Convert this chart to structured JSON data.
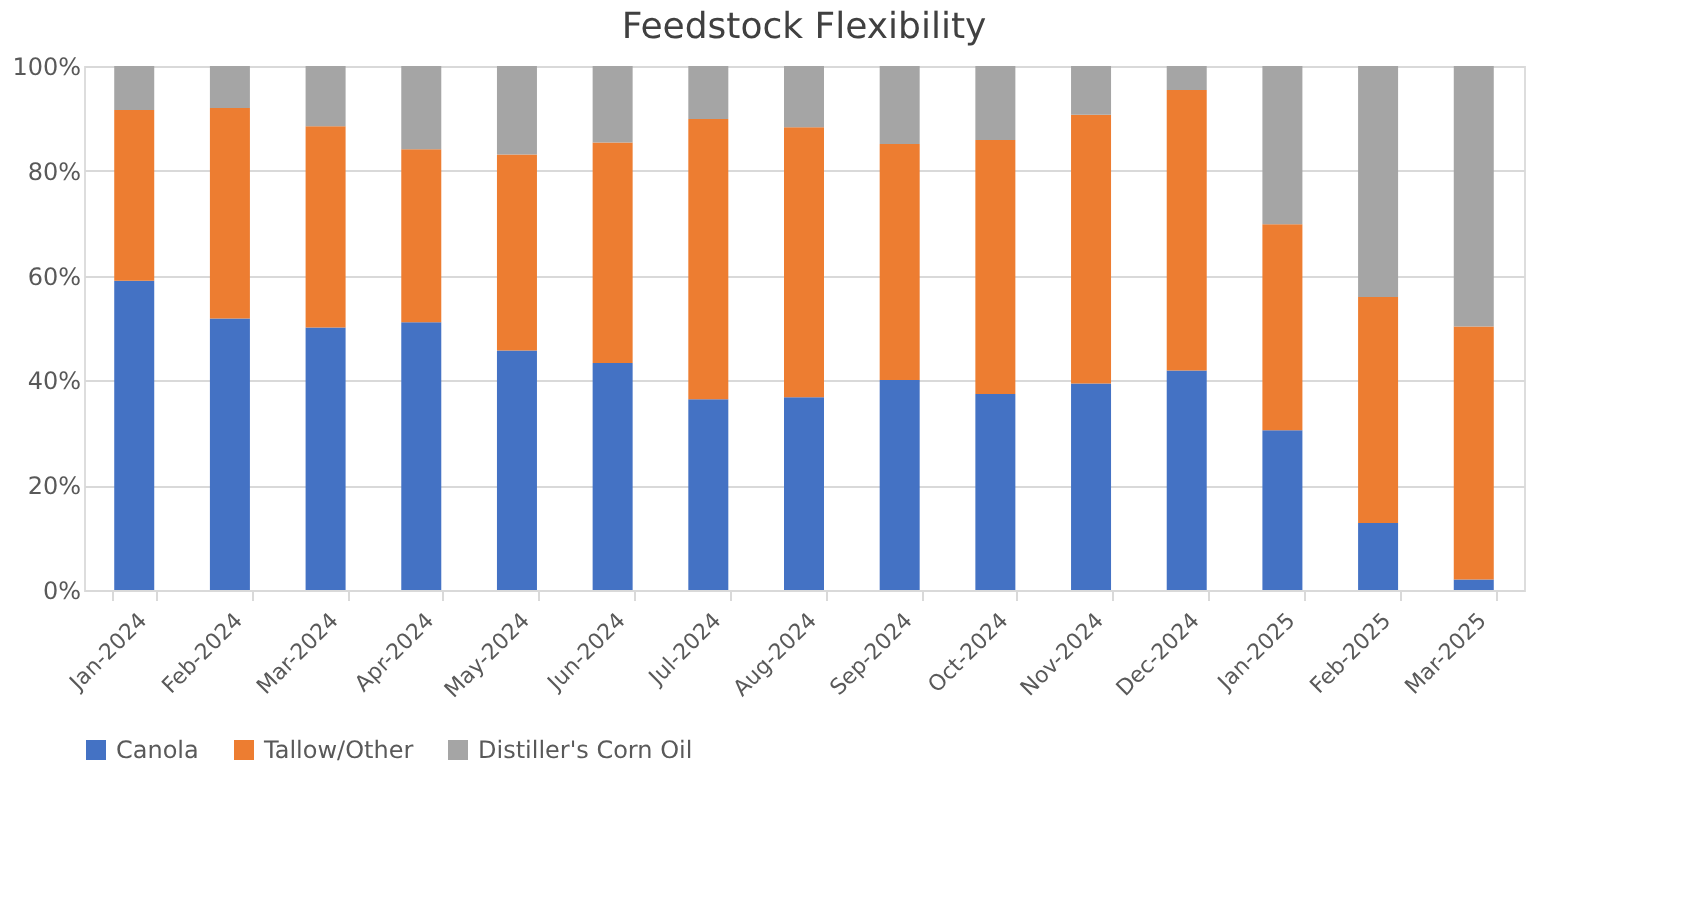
{
  "chart_data": {
    "type": "bar",
    "title": "Feedstock Flexibility",
    "stacked": true,
    "grid": "y",
    "legend": "bottom",
    "categories": [
      "Jan-2024",
      "Feb-2024",
      "Mar-2024",
      "Apr-2024",
      "May-2024",
      "Jun-2024",
      "Jul-2024",
      "Aug-2024",
      "Sep-2024",
      "Oct-2024",
      "Nov-2024",
      "Dec-2024",
      "Jan-2025",
      "Feb-2025",
      "Mar-2025"
    ],
    "ylim": [
      0,
      100
    ],
    "yticks": [
      {
        "value": 0,
        "label": "0%"
      },
      {
        "value": 20,
        "label": "20%"
      },
      {
        "value": 40,
        "label": "40%"
      },
      {
        "value": 60,
        "label": "60%"
      },
      {
        "value": 80,
        "label": "80%"
      },
      {
        "value": 100,
        "label": "100%"
      }
    ],
    "series": [
      {
        "name": "Canola",
        "color": "#4472c4",
        "values": [
          59.0,
          51.8,
          50.1,
          51.1,
          45.7,
          43.3,
          36.4,
          36.8,
          40.1,
          37.4,
          39.4,
          41.9,
          30.5,
          12.8,
          2.0
        ]
      },
      {
        "name": "Tallow/Other",
        "color": "#ed7d31",
        "values": [
          32.6,
          40.2,
          38.4,
          33.0,
          37.4,
          42.1,
          53.5,
          51.5,
          45.0,
          48.5,
          51.3,
          53.5,
          39.3,
          43.1,
          48.3
        ]
      },
      {
        "name": "Distiller's Corn Oil",
        "color": "#a5a5a5",
        "values": [
          8.4,
          8.0,
          11.5,
          15.9,
          16.9,
          14.6,
          10.1,
          11.7,
          14.9,
          14.1,
          9.3,
          4.6,
          30.2,
          44.1,
          49.7
        ]
      }
    ]
  }
}
